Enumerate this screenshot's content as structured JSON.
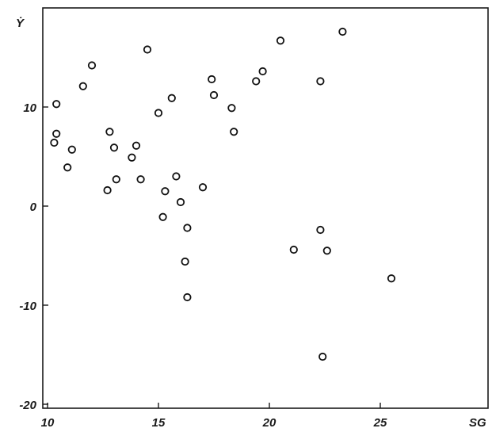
{
  "chart_data": {
    "type": "scatter",
    "title": "",
    "xlabel": "SG",
    "ylabel": "Ẏ",
    "xlim": [
      10,
      28
    ],
    "ylim": [
      -20,
      20
    ],
    "x_ticks": [
      10,
      15,
      20,
      25
    ],
    "y_ticks": [
      -20,
      -10,
      0,
      10
    ],
    "x_tick_labels": [
      "10",
      "15",
      "20",
      "25"
    ],
    "y_tick_labels": [
      "-20",
      "-10",
      "0",
      "10"
    ],
    "grid": false,
    "colors": {
      "points": "#111111",
      "background": "#ffffff"
    },
    "series": [
      {
        "x": [
          10.3,
          10.4,
          10.4,
          10.9,
          11.1,
          11.6,
          12.0,
          12.7,
          12.8,
          13.0,
          13.1,
          13.8,
          14.0,
          14.2,
          14.5,
          15.0,
          15.2,
          15.3,
          15.6,
          15.8,
          16.0,
          16.2,
          16.3,
          16.3,
          17.0,
          17.4,
          17.5,
          18.3,
          18.4,
          19.4,
          19.7,
          20.5,
          21.1,
          22.3,
          22.3,
          22.4,
          22.6,
          23.3,
          25.5
        ],
        "y": [
          6.4,
          7.3,
          10.3,
          3.9,
          5.7,
          12.1,
          14.2,
          1.6,
          7.5,
          5.9,
          2.7,
          4.9,
          6.1,
          2.7,
          15.8,
          9.4,
          -1.1,
          1.5,
          10.9,
          3.0,
          0.4,
          -5.6,
          -9.2,
          -2.2,
          1.9,
          12.8,
          11.2,
          9.9,
          7.5,
          12.6,
          13.6,
          16.7,
          -4.4,
          -2.4,
          12.6,
          -15.2,
          -4.5,
          17.6,
          -7.3
        ]
      }
    ]
  }
}
